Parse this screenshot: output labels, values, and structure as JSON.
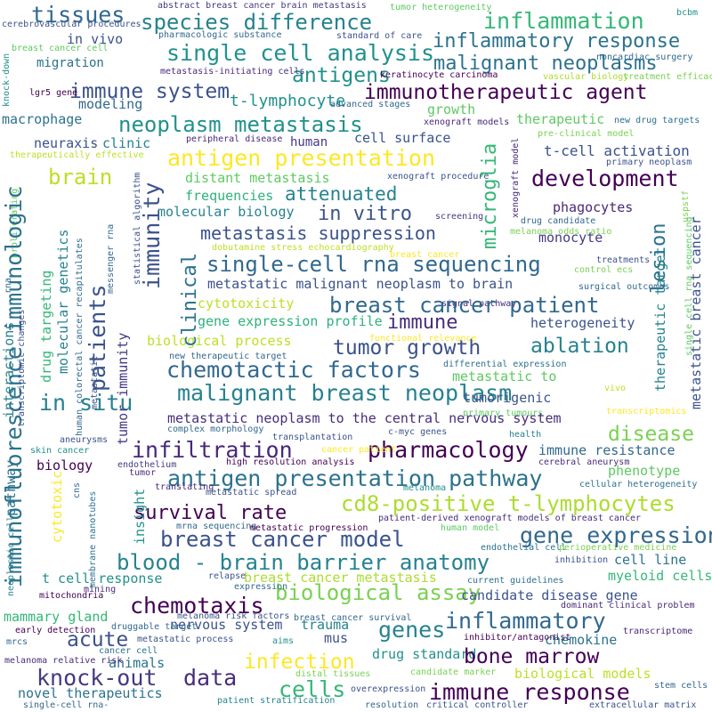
{
  "words": [
    {
      "text": "tissues",
      "color": "#31688e"
    },
    {
      "text": "species difference",
      "color": "#26828e"
    },
    {
      "text": "inflammation",
      "color": "#35b779"
    },
    {
      "text": "abstract breast cancer brain metastasis",
      "color": "#443a83"
    },
    {
      "text": "tumor heterogeneity",
      "color": "#5ec962"
    },
    {
      "text": "bcbm",
      "color": "#21918c"
    },
    {
      "text": "cerebrovascular procedures",
      "color": "#3b528b"
    },
    {
      "text": "inflammatory response",
      "color": "#2c728e"
    },
    {
      "text": "single cell analysis",
      "color": "#21918c"
    },
    {
      "text": "in vivo",
      "color": "#3b528b"
    },
    {
      "text": "pharmacologic substance",
      "color": "#31688e"
    },
    {
      "text": "standard of care",
      "color": "#3b528b"
    },
    {
      "text": "noncardiac surgery",
      "color": "#31688e"
    },
    {
      "text": "breast cancer cell",
      "color": "#5ec962"
    },
    {
      "text": "migration",
      "color": "#2c728e"
    },
    {
      "text": "antigens",
      "color": "#21918c"
    },
    {
      "text": "malignant neoplasms",
      "color": "#2c728e"
    },
    {
      "text": "metastasis-initiating cells",
      "color": "#472d7b"
    },
    {
      "text": "keratinocyte carcinoma",
      "color": "#440154"
    },
    {
      "text": "vascular biology",
      "color": "#addc30"
    },
    {
      "text": "treatment efficacy",
      "color": "#7ad151"
    },
    {
      "text": "immunotherapeutic agent",
      "color": "#440154"
    },
    {
      "text": "immune system",
      "color": "#3b528b"
    },
    {
      "text": "lgr5 gene",
      "color": "#440154"
    },
    {
      "text": "t-lymphocyte",
      "color": "#21918c"
    },
    {
      "text": "advanced stages",
      "color": "#31688e"
    },
    {
      "text": "modeling",
      "color": "#31688e"
    },
    {
      "text": "growth",
      "color": "#5ec962"
    },
    {
      "text": "xenograft models",
      "color": "#482878"
    },
    {
      "text": "macrophage",
      "color": "#2c728e"
    },
    {
      "text": "neoplasm metastasis",
      "color": "#21918c"
    },
    {
      "text": "therapeutic",
      "color": "#5ec962"
    },
    {
      "text": "new drug targets",
      "color": "#2c728e"
    },
    {
      "text": "pre-clinical model",
      "color": "#7ad151"
    },
    {
      "text": "neuraxis",
      "color": "#3b528b"
    },
    {
      "text": "clinic",
      "color": "#26828e"
    },
    {
      "text": "human",
      "color": "#443a83"
    },
    {
      "text": "cell surface",
      "color": "#3b528b"
    },
    {
      "text": "peripheral disease",
      "color": "#482878"
    },
    {
      "text": "t-cell activation",
      "color": "#3b528b"
    },
    {
      "text": "therapeutically effective",
      "color": "#bddf26"
    },
    {
      "text": "antigen presentation",
      "color": "#fde725"
    },
    {
      "text": "primary neoplasm",
      "color": "#3b528b"
    },
    {
      "text": "brain",
      "color": "#bddf26"
    },
    {
      "text": "distant metastasis",
      "color": "#5ec962"
    },
    {
      "text": "development",
      "color": "#440154"
    },
    {
      "text": "xenograft procedure",
      "color": "#3b528b"
    },
    {
      "text": "attenuated",
      "color": "#26828e"
    },
    {
      "text": "frequencies",
      "color": "#2db27d"
    },
    {
      "text": "in vitro",
      "color": "#3b528b"
    },
    {
      "text": "molecular biology",
      "color": "#26828e"
    },
    {
      "text": "phagocytes",
      "color": "#482878"
    },
    {
      "text": "screening",
      "color": "#443a83"
    },
    {
      "text": "drug candidate",
      "color": "#31688e"
    },
    {
      "text": "monocyte",
      "color": "#443a83"
    },
    {
      "text": "metastasis suppression",
      "color": "#3b528b"
    },
    {
      "text": "breast cancer",
      "color": "#fde725"
    },
    {
      "text": "melanoma odds ratio",
      "color": "#7ad151"
    },
    {
      "text": "dobutamine stress echocardiography",
      "color": "#bddf26"
    },
    {
      "text": "treatments",
      "color": "#3b528b"
    },
    {
      "text": "control ecs",
      "color": "#7ad151"
    },
    {
      "text": "single-cell rna sequencing",
      "color": "#31688e"
    },
    {
      "text": "metastatic malignant neoplasm to brain",
      "color": "#3b528b"
    },
    {
      "text": "surgical outcomes",
      "color": "#31688e"
    },
    {
      "text": "signal pathway",
      "color": "#482878"
    },
    {
      "text": "breast cancer patient",
      "color": "#31688e"
    },
    {
      "text": "cytotoxicity",
      "color": "#bddf26"
    },
    {
      "text": "gene expression profile",
      "color": "#2db27d"
    },
    {
      "text": "immune",
      "color": "#472d7b"
    },
    {
      "text": "heterogeneity",
      "color": "#3b528b"
    },
    {
      "text": "biological process",
      "color": "#bddf26"
    },
    {
      "text": "tumor growth",
      "color": "#3b528b"
    },
    {
      "text": "ablation",
      "color": "#26828e"
    },
    {
      "text": "functional relevance",
      "color": "#fde725"
    },
    {
      "text": "new therapeutic target",
      "color": "#31688e"
    },
    {
      "text": "differential expression",
      "color": "#2c728e"
    },
    {
      "text": "chemotactic factors",
      "color": "#31688e"
    },
    {
      "text": "metastatic to",
      "color": "#5ec962"
    },
    {
      "text": "malignant breast neoplasm",
      "color": "#26828e"
    },
    {
      "text": "tumorigenic",
      "color": "#3b528b"
    },
    {
      "text": "vivo",
      "color": "#bddf26"
    },
    {
      "text": "in situ",
      "color": "#26828e"
    },
    {
      "text": "primary tumours",
      "color": "#5ec962"
    },
    {
      "text": "transcriptomics",
      "color": "#fde725"
    },
    {
      "text": "metastatic neoplasm to the central nervous system",
      "color": "#472d7b"
    },
    {
      "text": "complex morphology",
      "color": "#31688e"
    },
    {
      "text": "c-myc genes",
      "color": "#3b528b"
    },
    {
      "text": "health",
      "color": "#26828e"
    },
    {
      "text": "disease",
      "color": "#7ad151"
    },
    {
      "text": "aneurysms",
      "color": "#3b528b"
    },
    {
      "text": "transplantation",
      "color": "#3b528b"
    },
    {
      "text": "skin cancer",
      "color": "#21918c"
    },
    {
      "text": "infiltration",
      "color": "#482878"
    },
    {
      "text": "pharmacology",
      "color": "#440154"
    },
    {
      "text": "cancer patient",
      "color": "#fde725"
    },
    {
      "text": "immune resistance",
      "color": "#31688e"
    },
    {
      "text": "biology",
      "color": "#440154"
    },
    {
      "text": "endothelium",
      "color": "#443a83"
    },
    {
      "text": "high resolution analysis",
      "color": "#440154"
    },
    {
      "text": "cerebral aneurysm",
      "color": "#472d7b"
    },
    {
      "text": "tumor",
      "color": "#472d7b"
    },
    {
      "text": "antigen presentation pathway",
      "color": "#2c728e"
    },
    {
      "text": "phenotype",
      "color": "#5ec962"
    },
    {
      "text": "translating",
      "color": "#482878"
    },
    {
      "text": "metastatic spread",
      "color": "#3b528b"
    },
    {
      "text": "cellular heterogeneity",
      "color": "#2c728e"
    },
    {
      "text": "melanoma",
      "color": "#21918c"
    },
    {
      "text": "cd8-positive t-lymphocytes",
      "color": "#addc30"
    },
    {
      "text": "survival rate",
      "color": "#440154"
    },
    {
      "text": "patient-derived xenograft models of breast cancer",
      "color": "#472d7b"
    },
    {
      "text": "mrna sequencing",
      "color": "#31688e"
    },
    {
      "text": "metastatic progression",
      "color": "#440154"
    },
    {
      "text": "human model",
      "color": "#5ec962"
    },
    {
      "text": "endothelial cell",
      "color": "#2c728e"
    },
    {
      "text": "perioperative medicine",
      "color": "#7ad151"
    },
    {
      "text": "breast cancer model",
      "color": "#3b528b"
    },
    {
      "text": "gene expression",
      "color": "#31688e"
    },
    {
      "text": "blood - brain barrier anatomy",
      "color": "#26828e"
    },
    {
      "text": "cell line",
      "color": "#2c728e"
    },
    {
      "text": "inhibition",
      "color": "#3b528b"
    },
    {
      "text": "t cell response",
      "color": "#21918c"
    },
    {
      "text": "relapse",
      "color": "#3b528b"
    },
    {
      "text": "breast cancer metastasis",
      "color": "#addc30"
    },
    {
      "text": "current guidelines",
      "color": "#2c728e"
    },
    {
      "text": "myeloid cells",
      "color": "#35b779"
    },
    {
      "text": "mining",
      "color": "#472d7b"
    },
    {
      "text": "biological assay",
      "color": "#7ad151"
    },
    {
      "text": "expression",
      "color": "#31688e"
    },
    {
      "text": "candidate disease gene",
      "color": "#3b528b"
    },
    {
      "text": "mitochondria",
      "color": "#440154"
    },
    {
      "text": "chemotaxis",
      "color": "#440154"
    },
    {
      "text": "dominant clinical problem",
      "color": "#482878"
    },
    {
      "text": "mammary gland",
      "color": "#35b779"
    },
    {
      "text": "melanoma risk factors",
      "color": "#3b528b"
    },
    {
      "text": "nervous system",
      "color": "#3b528b"
    },
    {
      "text": "trauma",
      "color": "#26828e"
    },
    {
      "text": "inflammatory",
      "color": "#31688e"
    },
    {
      "text": "early detection",
      "color": "#440154"
    },
    {
      "text": "druggable target",
      "color": "#31688e"
    },
    {
      "text": "genes",
      "color": "#26828e"
    },
    {
      "text": "transcriptome",
      "color": "#482878"
    },
    {
      "text": "breast cancer survival",
      "color": "#31688e"
    },
    {
      "text": "mus",
      "color": "#3b528b"
    },
    {
      "text": "inhibitor/antagonist",
      "color": "#440154"
    },
    {
      "text": "acute",
      "color": "#3b528b"
    },
    {
      "text": "metastatic process",
      "color": "#3b528b"
    },
    {
      "text": "aims",
      "color": "#21918c"
    },
    {
      "text": "drug standard",
      "color": "#21918c"
    },
    {
      "text": "chemokine",
      "color": "#2c728e"
    },
    {
      "text": "bone marrow",
      "color": "#440154"
    },
    {
      "text": "mrcs",
      "color": "#31688e"
    },
    {
      "text": "cancer cell",
      "color": "#2c728e"
    },
    {
      "text": "infection",
      "color": "#fde725"
    },
    {
      "text": "animals",
      "color": "#2c728e"
    },
    {
      "text": "melanoma relative risk",
      "color": "#472d7b"
    },
    {
      "text": "knock-out",
      "color": "#443a83"
    },
    {
      "text": "data",
      "color": "#472d7b"
    },
    {
      "text": "biological models",
      "color": "#bddf26"
    },
    {
      "text": "novel therapeutics",
      "color": "#2c728e"
    },
    {
      "text": "distal tissues",
      "color": "#7ad151"
    },
    {
      "text": "candidate marker",
      "color": "#7ad151"
    },
    {
      "text": "cells",
      "color": "#35b779"
    },
    {
      "text": "immune response",
      "color": "#440154"
    },
    {
      "text": "stem cells",
      "color": "#31688e"
    },
    {
      "text": "overexpression",
      "color": "#3b528b"
    },
    {
      "text": "single-cell rna-",
      "color": "#31688e"
    },
    {
      "text": "patient stratification",
      "color": "#26828e"
    },
    {
      "text": "resolution",
      "color": "#31688e"
    },
    {
      "text": "critical controller",
      "color": "#3b528b"
    },
    {
      "text": "extracellular matrix",
      "color": "#3b528b"
    },
    {
      "text": "knock-down",
      "color": "#21918c"
    },
    {
      "text": "proliferating",
      "color": "#5ec962"
    },
    {
      "text": "rna",
      "color": "#31688e"
    },
    {
      "text": "interactions",
      "color": "#26828e"
    },
    {
      "text": "immunofluorescence immunologic",
      "color": "#2c728e"
    },
    {
      "text": "transcriptomic changes",
      "color": "#3b528b"
    },
    {
      "text": "pathway",
      "color": "#2c728e"
    },
    {
      "text": "neoplastic cell",
      "color": "#26828e"
    },
    {
      "text": "molecular genetics",
      "color": "#26828e"
    },
    {
      "text": "drug targeting",
      "color": "#35b779"
    },
    {
      "text": "human colorectal cancer recapitulates",
      "color": "#31688e"
    },
    {
      "text": "cytotoxic",
      "color": "#fde725"
    },
    {
      "text": "cns",
      "color": "#31688e"
    },
    {
      "text": "patients",
      "color": "#3b528b"
    },
    {
      "text": "messenger rna",
      "color": "#31688e"
    },
    {
      "text": "metastatic",
      "color": "#3b528b"
    },
    {
      "text": "tumor immunity",
      "color": "#443a83"
    },
    {
      "text": "statistical algorithm",
      "color": "#3b528b"
    },
    {
      "text": "insight",
      "color": "#21918c"
    },
    {
      "text": "membrane nanotubes",
      "color": "#2c728e"
    },
    {
      "text": "immunity",
      "color": "#3b528b"
    },
    {
      "text": "clinical",
      "color": "#2c728e"
    },
    {
      "text": "microglia",
      "color": "#35b779"
    },
    {
      "text": "xenograft model",
      "color": "#482878"
    },
    {
      "text": "lesion",
      "color": "#2c728e"
    },
    {
      "text": "therapeutic target",
      "color": "#26828e"
    },
    {
      "text": "metastatic breast cancer",
      "color": "#3b528b"
    },
    {
      "text": "uspstf",
      "color": "#7ad151"
    },
    {
      "text": "single cell rna sequencing",
      "color": "#5ec962"
    }
  ]
}
